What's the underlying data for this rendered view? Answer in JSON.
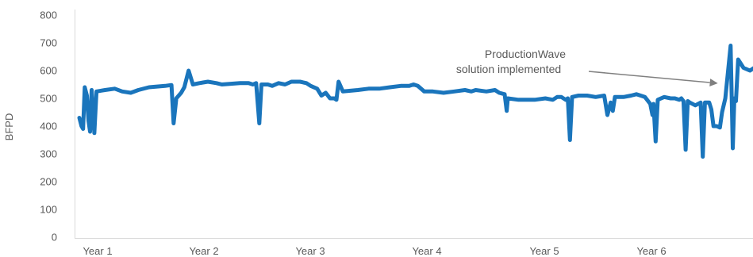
{
  "chart_data": {
    "type": "line",
    "title": "",
    "xlabel": "",
    "ylabel": "BFPD",
    "ylim": [
      0,
      800
    ],
    "yticks": [
      0,
      100,
      200,
      300,
      400,
      500,
      600,
      700,
      800
    ],
    "grid": false,
    "x_categories": [
      "Year 1",
      "Year 2",
      "Year 3",
      "Year 4",
      "Year 5",
      "Year 6"
    ],
    "series": [
      {
        "color": "#1a75bc",
        "points": [
          [
            0.0,
            430
          ],
          [
            0.02,
            400
          ],
          [
            0.035,
            390
          ],
          [
            0.05,
            540
          ],
          [
            0.07,
            510
          ],
          [
            0.085,
            420
          ],
          [
            0.1,
            380
          ],
          [
            0.115,
            530
          ],
          [
            0.14,
            375
          ],
          [
            0.16,
            525
          ],
          [
            0.24,
            530
          ],
          [
            0.33,
            535
          ],
          [
            0.4,
            525
          ],
          [
            0.48,
            520
          ],
          [
            0.55,
            530
          ],
          [
            0.65,
            540
          ],
          [
            0.8,
            545
          ],
          [
            0.86,
            548
          ],
          [
            0.88,
            410
          ],
          [
            0.905,
            500
          ],
          [
            0.95,
            520
          ],
          [
            0.98,
            540
          ],
          [
            1.02,
            600
          ],
          [
            1.06,
            550
          ],
          [
            1.12,
            555
          ],
          [
            1.2,
            560
          ],
          [
            1.28,
            555
          ],
          [
            1.33,
            550
          ],
          [
            1.5,
            555
          ],
          [
            1.58,
            555
          ],
          [
            1.62,
            550
          ],
          [
            1.65,
            555
          ],
          [
            1.68,
            410
          ],
          [
            1.7,
            550
          ],
          [
            1.76,
            550
          ],
          [
            1.8,
            545
          ],
          [
            1.86,
            555
          ],
          [
            1.92,
            550
          ],
          [
            1.98,
            560
          ],
          [
            2.06,
            560
          ],
          [
            2.12,
            555
          ],
          [
            2.16,
            545
          ],
          [
            2.22,
            535
          ],
          [
            2.26,
            510
          ],
          [
            2.3,
            520
          ],
          [
            2.34,
            500
          ],
          [
            2.38,
            500
          ],
          [
            2.4,
            495
          ],
          [
            2.42,
            560
          ],
          [
            2.46,
            525
          ],
          [
            2.6,
            530
          ],
          [
            2.7,
            535
          ],
          [
            2.8,
            535
          ],
          [
            2.9,
            540
          ],
          [
            3.0,
            545
          ],
          [
            3.08,
            545
          ],
          [
            3.12,
            550
          ],
          [
            3.16,
            545
          ],
          [
            3.22,
            525
          ],
          [
            3.3,
            525
          ],
          [
            3.4,
            520
          ],
          [
            3.5,
            525
          ],
          [
            3.6,
            530
          ],
          [
            3.66,
            525
          ],
          [
            3.7,
            530
          ],
          [
            3.8,
            525
          ],
          [
            3.88,
            530
          ],
          [
            3.92,
            520
          ],
          [
            3.97,
            515
          ],
          [
            3.99,
            455
          ],
          [
            4.0,
            500
          ],
          [
            4.1,
            495
          ],
          [
            4.25,
            495
          ],
          [
            4.35,
            500
          ],
          [
            4.42,
            495
          ],
          [
            4.46,
            505
          ],
          [
            4.5,
            505
          ],
          [
            4.54,
            495
          ],
          [
            4.56,
            500
          ],
          [
            4.58,
            350
          ],
          [
            4.6,
            505
          ],
          [
            4.66,
            510
          ],
          [
            4.74,
            510
          ],
          [
            4.82,
            505
          ],
          [
            4.9,
            510
          ],
          [
            4.93,
            440
          ],
          [
            4.94,
            455
          ],
          [
            4.96,
            485
          ],
          [
            4.98,
            455
          ],
          [
            5.0,
            505
          ],
          [
            5.08,
            505
          ],
          [
            5.15,
            510
          ],
          [
            5.2,
            515
          ],
          [
            5.28,
            505
          ],
          [
            5.33,
            480
          ],
          [
            5.35,
            440
          ],
          [
            5.36,
            480
          ],
          [
            5.38,
            345
          ],
          [
            5.4,
            495
          ],
          [
            5.46,
            505
          ],
          [
            5.52,
            500
          ],
          [
            5.56,
            500
          ],
          [
            5.6,
            495
          ],
          [
            5.62,
            500
          ],
          [
            5.64,
            490
          ],
          [
            5.66,
            315
          ],
          [
            5.68,
            490
          ],
          [
            5.7,
            485
          ],
          [
            5.75,
            475
          ],
          [
            5.8,
            485
          ],
          [
            5.82,
            290
          ],
          [
            5.84,
            485
          ],
          [
            5.88,
            485
          ],
          [
            5.9,
            460
          ],
          [
            5.92,
            400
          ],
          [
            5.95,
            400
          ],
          [
            5.98,
            395
          ],
          [
            6.0,
            450
          ],
          [
            6.03,
            500
          ],
          [
            6.08,
            690
          ],
          [
            6.1,
            320
          ],
          [
            6.115,
            500
          ],
          [
            6.13,
            490
          ],
          [
            6.15,
            640
          ],
          [
            6.2,
            610
          ],
          [
            6.26,
            600
          ],
          [
            6.3,
            610
          ],
          [
            6.36,
            605
          ],
          [
            6.42,
            620
          ],
          [
            6.48,
            650
          ],
          [
            6.56,
            580
          ],
          [
            6.66,
            575
          ],
          [
            6.7,
            590
          ],
          [
            6.74,
            595
          ],
          [
            6.8,
            600
          ],
          [
            6.88,
            595
          ],
          [
            6.92,
            600
          ],
          [
            6.96,
            575
          ],
          [
            7.0,
            580
          ],
          [
            7.06,
            585
          ],
          [
            7.12,
            590
          ],
          [
            7.16,
            590
          ],
          [
            7.22,
            600
          ],
          [
            7.3,
            610
          ]
        ]
      }
    ],
    "annotations": [
      {
        "lines": [
          "ProductionWave",
          "solution implemented"
        ],
        "arrow_to": [
          5.99,
          560
        ]
      }
    ]
  }
}
